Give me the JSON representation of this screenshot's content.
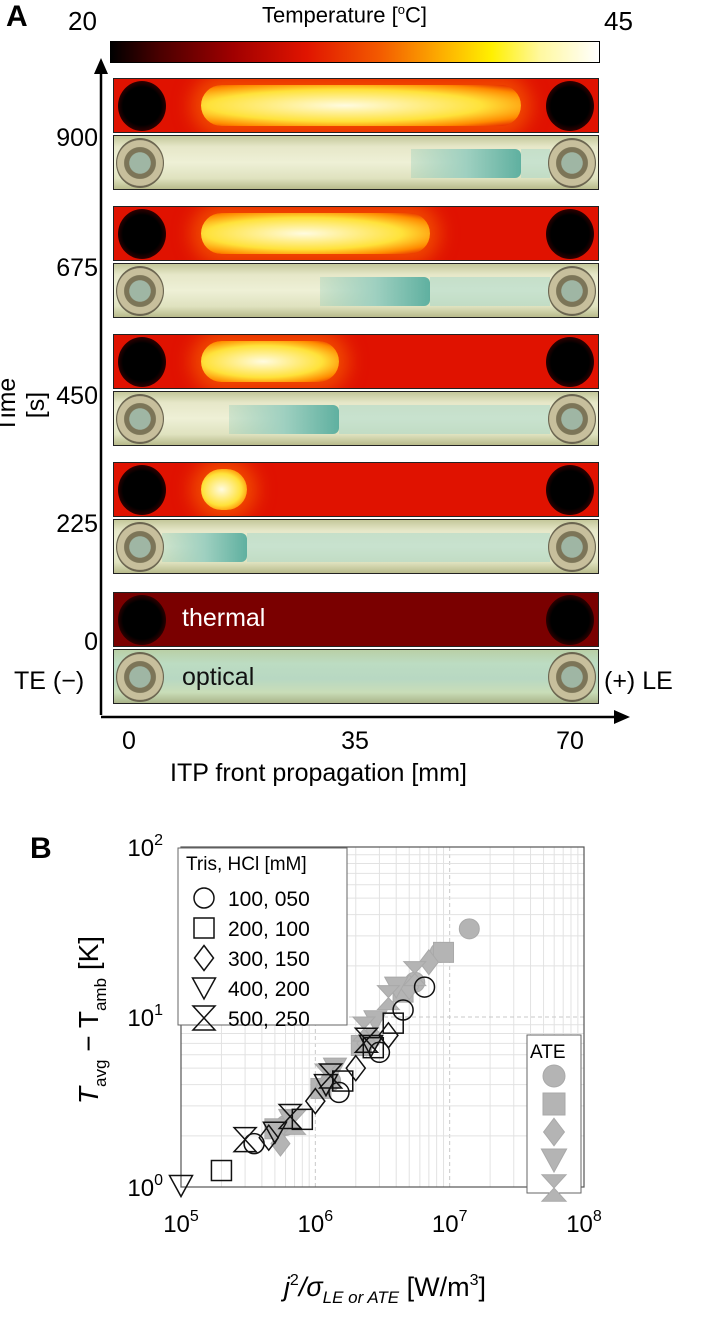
{
  "panel_a": {
    "letter": "A",
    "colorbar": {
      "title": "Temperature [",
      "title_sup": "o",
      "title_end": "C]",
      "min": "20",
      "max": "45"
    },
    "y_axis": {
      "label": "Time [s]",
      "ticks": [
        "900",
        "675",
        "450",
        "225",
        "0"
      ]
    },
    "x_axis": {
      "label": "ITP front propagation [mm]",
      "ticks": [
        "0",
        "35",
        "70"
      ]
    },
    "left_label": "TE (−)",
    "right_label": "(+) LE",
    "strip_labels": {
      "thermal": "thermal",
      "optical": "optical"
    },
    "frames": [
      {
        "time": 900,
        "front_mm": 62,
        "hot_start_mm": 6,
        "hot_end_mm": 62
      },
      {
        "time": 675,
        "front_mm": 47,
        "hot_start_mm": 6,
        "hot_end_mm": 47
      },
      {
        "time": 450,
        "front_mm": 32,
        "hot_start_mm": 6,
        "hot_end_mm": 32
      },
      {
        "time": 225,
        "front_mm": 17,
        "hot_start_mm": 6,
        "hot_end_mm": 17
      },
      {
        "time": 0,
        "front_mm": 0,
        "hot_start_mm": 0,
        "hot_end_mm": 0
      }
    ],
    "colors": {
      "hot": "#fffbe0",
      "mid": "#ffe23a",
      "warm": "#ee1d00",
      "base": "#e01200",
      "cold": "#7a0000",
      "dye": "#5fb0a0"
    }
  },
  "panel_b": {
    "letter": "B",
    "y_label_main": "T",
    "y_label_sub1": "avg",
    "y_label_minus": " − T",
    "y_label_sub2": "amb",
    "y_label_unit": " [K]",
    "x_label_pre": "j",
    "x_label_sup": "2",
    "x_label_mid": "/σ",
    "x_label_sub": "LE or ATE",
    "x_label_unit": " [W/m",
    "x_label_unit_sup": "3",
    "x_label_unit_end": "]",
    "legend1_title": "Tris, HCl [mM]",
    "legend2_title": "ATE",
    "x_ticks": [
      {
        "base": "10",
        "exp": "5"
      },
      {
        "base": "10",
        "exp": "6"
      },
      {
        "base": "10",
        "exp": "7"
      },
      {
        "base": "10",
        "exp": "8"
      }
    ],
    "y_ticks": [
      {
        "base": "10",
        "exp": "0"
      },
      {
        "base": "10",
        "exp": "1"
      },
      {
        "base": "10",
        "exp": "2"
      }
    ]
  },
  "chart_data": {
    "type": "scatter",
    "x_scale": "log",
    "y_scale": "log",
    "xlim": [
      100000,
      100000000
    ],
    "ylim": [
      1,
      100
    ],
    "grid": true,
    "legend_placement": "top-left",
    "series": [
      {
        "name": "100, 050",
        "marker": "circle",
        "filled": false,
        "x": [
          350000,
          1500000,
          3000000,
          4500000,
          6500000
        ],
        "y": [
          1.8,
          3.6,
          6.2,
          11,
          15
        ]
      },
      {
        "name": "200, 100",
        "marker": "square",
        "filled": false,
        "x": [
          200000,
          800000,
          1600000,
          2700000,
          3800000
        ],
        "y": [
          1.25,
          2.5,
          4.2,
          6.6,
          9.2
        ]
      },
      {
        "name": "300, 150",
        "marker": "diamond",
        "filled": false,
        "x": [
          450000,
          1000000,
          2000000,
          3500000
        ],
        "y": [
          1.95,
          3.2,
          5.0,
          7.8
        ]
      },
      {
        "name": "400, 200",
        "marker": "triangle-down",
        "filled": false,
        "x": [
          100000,
          500000,
          1200000,
          2600000
        ],
        "y": [
          1.02,
          2.1,
          4.0,
          6.8
        ]
      },
      {
        "name": "500, 250",
        "marker": "hourglass",
        "filled": false,
        "x": [
          300000,
          650000,
          1300000,
          2400000
        ],
        "y": [
          1.9,
          2.6,
          4.5,
          7.3
        ]
      },
      {
        "name": "ATE",
        "marker": "circle",
        "filled": true,
        "x": [
          600000,
          1300000,
          2600000,
          5500000,
          8500000,
          14000000
        ],
        "y": [
          2.3,
          4.2,
          7.5,
          16,
          24,
          33
        ]
      },
      {
        "name": "ATE",
        "marker": "square",
        "filled": true,
        "x": [
          500000,
          1100000,
          2200000,
          4500000,
          9000000
        ],
        "y": [
          2.2,
          3.8,
          6.8,
          14,
          24
        ]
      },
      {
        "name": "ATE",
        "marker": "diamond",
        "filled": true,
        "x": [
          550000,
          1200000,
          2400000,
          5000000,
          7000000
        ],
        "y": [
          1.8,
          4.0,
          7.0,
          15,
          21
        ]
      },
      {
        "name": "ATE",
        "marker": "triangle-down",
        "filled": true,
        "x": [
          650000,
          1400000,
          2800000,
          4000000
        ],
        "y": [
          2.5,
          5.0,
          9.5,
          15
        ]
      },
      {
        "name": "ATE",
        "marker": "hourglass",
        "filled": true,
        "x": [
          700000,
          1200000,
          2300000,
          3500000,
          5500000
        ],
        "y": [
          2.4,
          4.5,
          8.5,
          13,
          18
        ]
      }
    ]
  }
}
